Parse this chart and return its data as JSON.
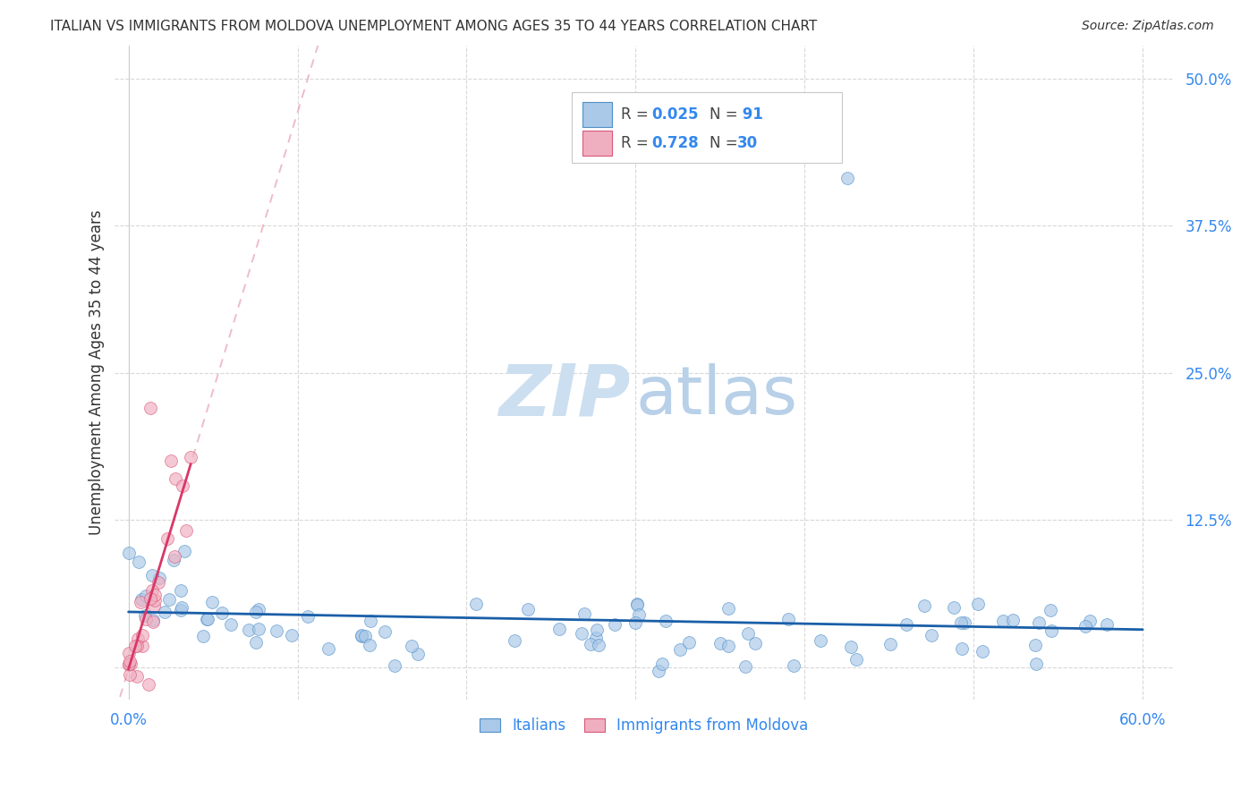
{
  "title": "ITALIAN VS IMMIGRANTS FROM MOLDOVA UNEMPLOYMENT AMONG AGES 35 TO 44 YEARS CORRELATION CHART",
  "source": "Source: ZipAtlas.com",
  "ylabel_label": "Unemployment Among Ages 35 to 44 years",
  "xlim": [
    -0.008,
    0.618
  ],
  "ylim": [
    -0.028,
    0.528
  ],
  "xtick_positions": [
    0.0,
    0.1,
    0.2,
    0.3,
    0.4,
    0.5,
    0.6
  ],
  "xticklabels": [
    "0.0%",
    "",
    "",
    "",
    "",
    "",
    "60.0%"
  ],
  "ytick_positions": [
    0.0,
    0.125,
    0.25,
    0.375,
    0.5
  ],
  "yticklabels": [
    "",
    "12.5%",
    "25.0%",
    "37.5%",
    "50.0%"
  ],
  "grid_color": "#c8c8c8",
  "bg_color": "#ffffff",
  "watermark_ZIP_color": "#ccdff0",
  "watermark_atlas_color": "#b8d0e8",
  "legend_r1": "0.025",
  "legend_n1": "91",
  "legend_r2": "0.728",
  "legend_n2": "30",
  "italian_face": "#aac8e8",
  "italian_edge": "#5090c8",
  "moldova_face": "#f0afc0",
  "moldova_edge": "#d85878",
  "italian_line": "#1a5fa8",
  "moldova_line": "#d83868",
  "moldova_dash": "#e8a0b0",
  "tick_color": "#3388ee",
  "label_color": "#333333",
  "title_fontsize": 11,
  "tick_fontsize": 12,
  "marker_size": 100,
  "scatter_alpha": 0.68
}
